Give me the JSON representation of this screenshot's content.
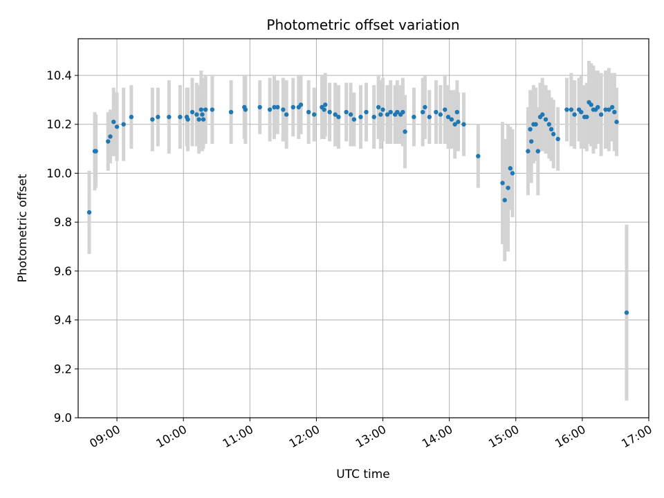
{
  "chart_data": {
    "type": "scatter",
    "title": "Photometric offset variation",
    "xlabel": "UTC time",
    "ylabel": "Photometric offset",
    "x_unit": "hours UTC",
    "xlim": [
      "08:25",
      "17:00"
    ],
    "ylim": [
      9.0,
      10.55
    ],
    "x_ticks": [
      "09:00",
      "10:00",
      "11:00",
      "12:00",
      "13:00",
      "14:00",
      "15:00",
      "16:00",
      "17:00"
    ],
    "y_ticks": [
      "9.0",
      "9.2",
      "9.4",
      "9.6",
      "9.8",
      "10.0",
      "10.2",
      "10.4"
    ],
    "grid": true,
    "marker_color": "#1f77b4",
    "errorbar_color": "#d3d3d3",
    "series": [
      {
        "values_format": "[time, offset, error]",
        "values": [
          [
            "08:35",
            9.84,
            0.17
          ],
          [
            "08:40",
            10.09,
            0.16
          ],
          [
            "08:41",
            10.09,
            0.15
          ],
          [
            "08:52",
            10.13,
            0.12
          ],
          [
            "08:54",
            10.15,
            0.11
          ],
          [
            "08:57",
            10.21,
            0.14
          ],
          [
            "09:00",
            10.19,
            0.14
          ],
          [
            "09:06",
            10.2,
            0.15
          ],
          [
            "09:13",
            10.23,
            0.13
          ],
          [
            "09:32",
            10.22,
            0.13
          ],
          [
            "09:37",
            10.23,
            0.12
          ],
          [
            "09:47",
            10.23,
            0.15
          ],
          [
            "09:57",
            10.23,
            0.13
          ],
          [
            "10:03",
            10.23,
            0.12
          ],
          [
            "10:04",
            10.22,
            0.13
          ],
          [
            "10:08",
            10.25,
            0.14
          ],
          [
            "10:12",
            10.24,
            0.13
          ],
          [
            "10:14",
            10.22,
            0.14
          ],
          [
            "10:16",
            10.26,
            0.16
          ],
          [
            "10:17",
            10.24,
            0.15
          ],
          [
            "10:18",
            10.22,
            0.12
          ],
          [
            "10:20",
            10.26,
            0.14
          ],
          [
            "10:26",
            10.26,
            0.14
          ],
          [
            "10:43",
            10.25,
            0.13
          ],
          [
            "10:55",
            10.27,
            0.13
          ],
          [
            "10:56",
            10.26,
            0.14
          ],
          [
            "11:09",
            10.27,
            0.11
          ],
          [
            "11:18",
            10.26,
            0.13
          ],
          [
            "11:22",
            10.27,
            0.13
          ],
          [
            "11:25",
            10.27,
            0.11
          ],
          [
            "11:30",
            10.26,
            0.13
          ],
          [
            "11:33",
            10.24,
            0.14
          ],
          [
            "11:39",
            10.27,
            0.12
          ],
          [
            "11:44",
            10.27,
            0.13
          ],
          [
            "11:46",
            10.28,
            0.12
          ],
          [
            "11:53",
            10.25,
            0.13
          ],
          [
            "11:58",
            10.24,
            0.11
          ],
          [
            "12:05",
            10.27,
            0.13
          ],
          [
            "12:07",
            10.26,
            0.12
          ],
          [
            "12:08",
            10.28,
            0.13
          ],
          [
            "12:12",
            10.25,
            0.12
          ],
          [
            "12:17",
            10.24,
            0.13
          ],
          [
            "12:20",
            10.23,
            0.13
          ],
          [
            "12:27",
            10.25,
            0.12
          ],
          [
            "12:31",
            10.24,
            0.13
          ],
          [
            "12:34",
            10.22,
            0.11
          ],
          [
            "12:40",
            10.23,
            0.13
          ],
          [
            "12:45",
            10.25,
            0.12
          ],
          [
            "12:52",
            10.23,
            0.13
          ],
          [
            "12:56",
            10.27,
            0.13
          ],
          [
            "12:58",
            10.24,
            0.14
          ],
          [
            "13:00",
            10.26,
            0.13
          ],
          [
            "13:04",
            10.24,
            0.12
          ],
          [
            "13:07",
            10.25,
            0.13
          ],
          [
            "13:11",
            10.24,
            0.12
          ],
          [
            "13:13",
            10.25,
            0.13
          ],
          [
            "13:16",
            10.24,
            0.12
          ],
          [
            "13:18",
            10.25,
            0.14
          ],
          [
            "13:20",
            10.17,
            0.15
          ],
          [
            "13:28",
            10.23,
            0.12
          ],
          [
            "13:36",
            10.25,
            0.14
          ],
          [
            "13:38",
            10.27,
            0.13
          ],
          [
            "13:42",
            10.23,
            0.11
          ],
          [
            "13:48",
            10.25,
            0.13
          ],
          [
            "13:52",
            10.24,
            0.12
          ],
          [
            "13:56",
            10.26,
            0.14
          ],
          [
            "13:59",
            10.23,
            0.13
          ],
          [
            "14:02",
            10.22,
            0.12
          ],
          [
            "14:05",
            10.2,
            0.14
          ],
          [
            "14:07",
            10.25,
            0.13
          ],
          [
            "14:08",
            10.21,
            0.12
          ],
          [
            "14:13",
            10.2,
            0.13
          ],
          [
            "14:26",
            10.07,
            0.13
          ],
          [
            "14:48",
            9.96,
            0.25
          ],
          [
            "14:50",
            9.89,
            0.25
          ],
          [
            "14:53",
            9.94,
            0.26
          ],
          [
            "14:55",
            10.02,
            0.17
          ],
          [
            "14:57",
            10.0,
            0.18
          ],
          [
            "15:20",
            10.09,
            0.18
          ],
          [
            "15:11",
            10.09,
            0.18
          ],
          [
            "15:13",
            10.18,
            0.16
          ],
          [
            "15:14",
            10.13,
            0.17
          ],
          [
            "15:16",
            10.2,
            0.16
          ],
          [
            "15:18",
            10.2,
            0.15
          ],
          [
            "15:22",
            10.23,
            0.14
          ],
          [
            "15:24",
            10.24,
            0.15
          ],
          [
            "15:27",
            10.22,
            0.14
          ],
          [
            "15:30",
            10.2,
            0.14
          ],
          [
            "15:32",
            10.18,
            0.13
          ],
          [
            "15:34",
            10.16,
            0.14
          ],
          [
            "15:38",
            10.14,
            0.13
          ],
          [
            "15:46",
            10.26,
            0.13
          ],
          [
            "15:50",
            10.26,
            0.15
          ],
          [
            "15:53",
            10.24,
            0.14
          ],
          [
            "15:57",
            10.26,
            0.13
          ],
          [
            "15:59",
            10.25,
            0.15
          ],
          [
            "16:02",
            10.23,
            0.13
          ],
          [
            "16:04",
            10.23,
            0.14
          ],
          [
            "16:06",
            10.29,
            0.17
          ],
          [
            "16:08",
            10.28,
            0.17
          ],
          [
            "16:10",
            10.26,
            0.18
          ],
          [
            "16:12",
            10.26,
            0.16
          ],
          [
            "16:14",
            10.27,
            0.15
          ],
          [
            "16:17",
            10.24,
            0.17
          ],
          [
            "16:21",
            10.26,
            0.16
          ],
          [
            "16:24",
            10.26,
            0.17
          ],
          [
            "16:27",
            10.27,
            0.14
          ],
          [
            "16:29",
            10.25,
            0.16
          ],
          [
            "16:31",
            10.21,
            0.14
          ],
          [
            "16:40",
            9.43,
            0.36
          ]
        ]
      }
    ]
  }
}
